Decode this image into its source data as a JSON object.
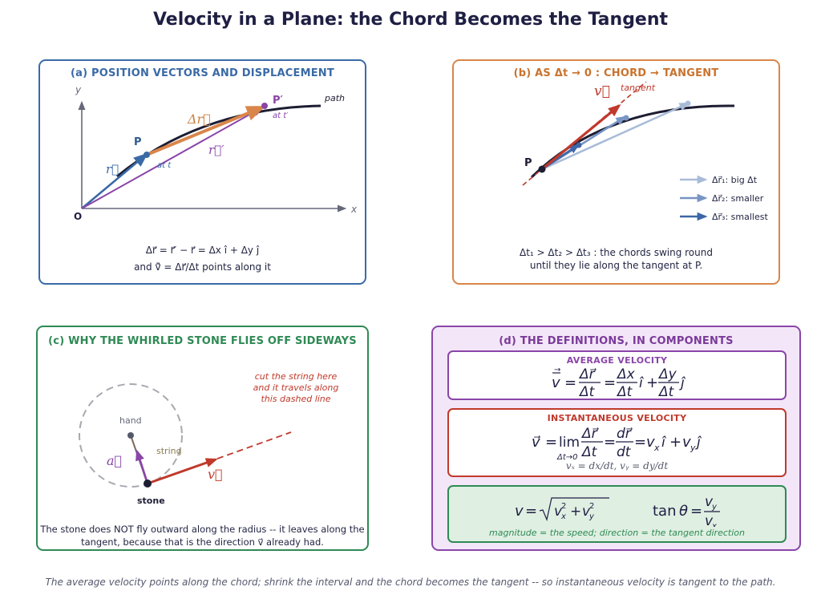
{
  "title": "Velocity in a Plane: the Chord Becomes the Tangent",
  "footer": "The average velocity points along the chord; shrink the interval and the chord becomes the tangent -- so instantaneous velocity is tangent to the path.",
  "panel_a": {
    "title": "(a)  POSITION VECTORS AND DISPLACEMENT",
    "labels": {
      "y": "y",
      "x": "x",
      "origin": "O",
      "p": "P",
      "p_prime": "P′",
      "at_t": "at t",
      "at_t_prime": "at t′",
      "path": "path",
      "r": "r⃗",
      "r_prime": "r⃗′",
      "delta_r": "Δr⃗"
    },
    "caption_line1": "Δr⃗ = r⃗′ − r⃗ = Δx î + Δy ĵ",
    "caption_line2": "and v̄⃗ = Δr⃗/Δt points along it"
  },
  "panel_b": {
    "title": "(b)  AS Δt → 0 :  CHORD → TANGENT",
    "labels": {
      "v": "v⃗",
      "tangent": "tangent",
      "p": "P"
    },
    "legend": [
      {
        "label": "Δr⃗₁: big Δt",
        "color": "#a8bcd8"
      },
      {
        "label": "Δr⃗₂: smaller",
        "color": "#7895c4"
      },
      {
        "label": "Δr⃗₃: smallest",
        "color": "#3d66a6"
      }
    ],
    "caption_line1": "Δt₁ > Δt₂ > Δt₃ :  the chords swing round",
    "caption_line2": "until they lie along the tangent at P."
  },
  "panel_c": {
    "title": "(c)  WHY THE WHIRLED STONE FLIES OFF SIDEWAYS",
    "labels": {
      "hand": "hand",
      "string": "string",
      "stone": "stone",
      "a": "a⃗",
      "v": "v⃗"
    },
    "annotation": [
      "cut the string here",
      "and it travels along",
      "this dashed line"
    ],
    "caption_line1": "The stone does NOT fly outward along the radius -- it leaves along the",
    "caption_line2": "tangent, because that is the direction v⃗ already had."
  },
  "panel_d": {
    "title": "(d)  THE DEFINITIONS, IN COMPONENTS",
    "average": {
      "heading": "AVERAGE VELOCITY"
    },
    "instantaneous": {
      "heading": "INSTANTANEOUS VELOCITY",
      "components": "vₓ = dx/dt,      vᵧ = dy/dt"
    },
    "magnitude": {
      "note": "magnitude = the speed;   direction = the tangent direction"
    }
  },
  "colors": {
    "blue": "#3a6aa6",
    "orange": "#d9864a",
    "green": "#2f8a55",
    "purple": "#8a45a8",
    "red": "#c0392b",
    "navy": "#1f1f44"
  }
}
